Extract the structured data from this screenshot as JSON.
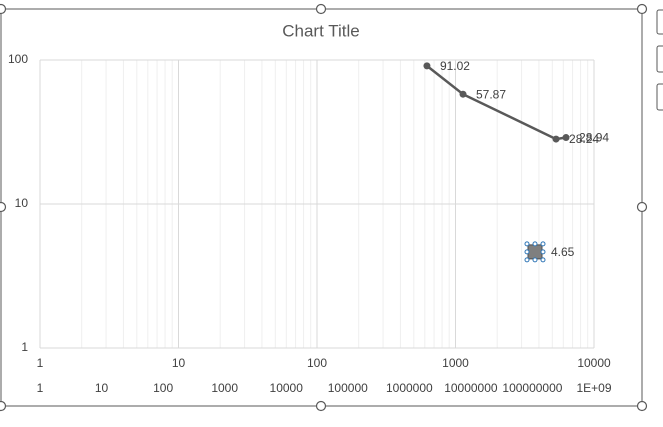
{
  "chart_data": {
    "type": "scatter",
    "title": "Chart Title",
    "xscale": "log",
    "yscale": "log",
    "grid": true,
    "x_minor_grid": true,
    "xlim": [
      1,
      10000
    ],
    "xticks": [
      1,
      10,
      100,
      1000,
      10000
    ],
    "x2lim": [
      1,
      1000000000
    ],
    "x2ticks": [
      1,
      10,
      100,
      1000,
      10000,
      100000,
      1000000,
      10000000,
      100000000,
      {
        "value": 1000000000,
        "label": "1E+09"
      }
    ],
    "ylim": [
      1,
      100
    ],
    "yticks": [
      1,
      10,
      100
    ],
    "series": [
      {
        "color": "#595959",
        "marker": "circle",
        "line": true,
        "x": [
          622,
          1133,
          5320,
          6280
        ],
        "values": [
          91.02,
          57.87,
          28.24,
          28.94
        ]
      },
      {
        "color": "#7f7f7f",
        "marker": "square",
        "line": false,
        "axis": "x2",
        "x": [
          110000000
        ],
        "values": [
          4.65
        ]
      }
    ]
  }
}
